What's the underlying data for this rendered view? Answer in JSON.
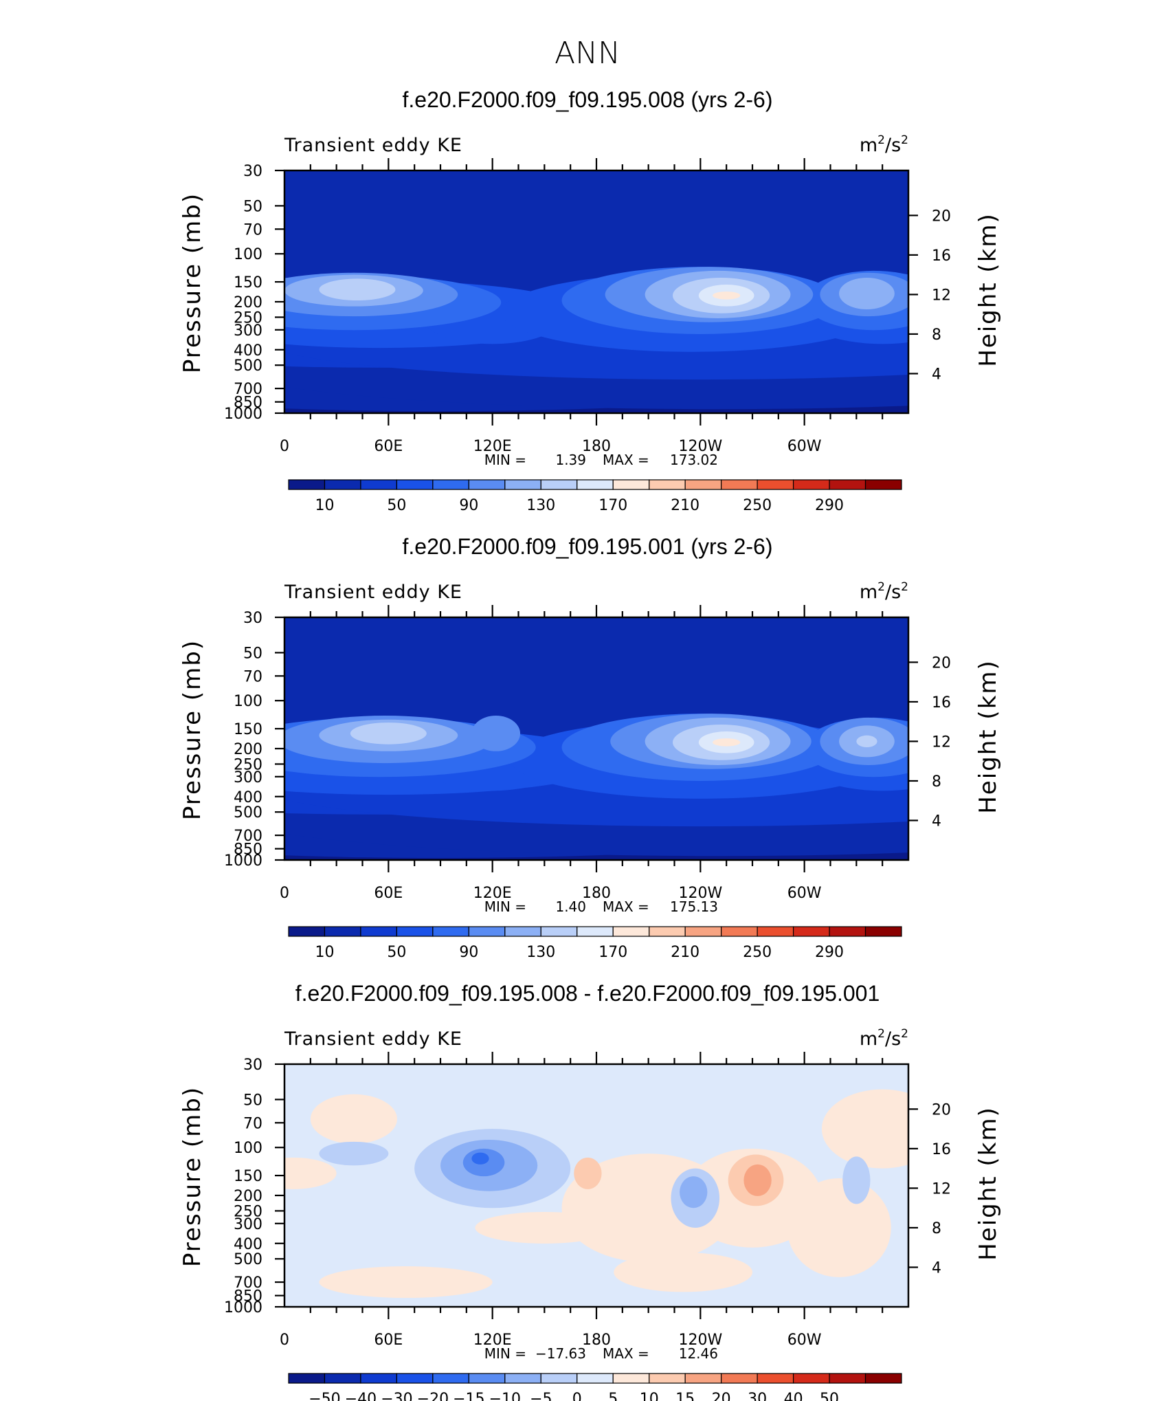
{
  "figure": {
    "title": "ANN"
  },
  "chart_data": [
    {
      "type": "heatmap",
      "title": "f.e20.F2000.f09_f09.195.008 (yrs 2-6)",
      "left_label": "Transient eddy KE",
      "units": "m²/s²",
      "units_base": "m",
      "units_mid": "/s",
      "units_exp": "2",
      "ylabel": "Pressure (mb)",
      "ylabel_right": "Height (km)",
      "y_ticks": [
        "30",
        "50",
        "70",
        "100",
        "150",
        "200",
        "250",
        "300",
        "400",
        "500",
        "700",
        "850",
        "1000"
      ],
      "y_ticks_right": [
        "20",
        "16",
        "12",
        "8",
        "4"
      ],
      "x_ticks": [
        "0",
        "60E",
        "120E",
        "180",
        "120W",
        "60W"
      ],
      "min_label": "MIN =",
      "min_value": "1.39",
      "max_label": "MAX =",
      "max_value": "173.02",
      "colorbar_labels": [
        "10",
        "50",
        "90",
        "130",
        "170",
        "210",
        "250",
        "290"
      ],
      "colorbar_colors": [
        "#0a1a8a",
        "#0b2aae",
        "#0f3bd0",
        "#1a52e8",
        "#2f6bf0",
        "#5a8cf2",
        "#8cb0f5",
        "#b9cff8",
        "#dde9fb",
        "#fde8da",
        "#fccbb0",
        "#f7a482",
        "#f27a55",
        "#eb4f2e",
        "#d52a1a",
        "#b3130f",
        "#8a0000"
      ],
      "field_levels": [
        {
          "color": "#0a1a8a",
          "regions": [
            {
              "cx": -60,
              "cy": -5,
              "rx": 700,
              "ry": 9
            },
            {
              "cx": 290,
              "cy": -12,
              "rx": 260,
              "ry": 16
            },
            {
              "cx": 610,
              "cy": -14,
              "rx": 170,
              "ry": 16
            }
          ]
        },
        {
          "color": "#0b2aae",
          "regions": [
            {
              "cx": 90,
              "cy": 3.6,
              "rx": 230,
              "ry": 3.4
            },
            {
              "cx": 250,
              "cy": 5.0,
              "rx": 290,
              "ry": 4.6
            }
          ]
        },
        {
          "color": "#0f3bd0",
          "regions": [
            {
              "cx": 60,
              "cy": 7.6,
              "rx": 200,
              "ry": 3.0
            },
            {
              "cx": 240,
              "cy": 7.8,
              "rx": 260,
              "ry": 4.4
            }
          ]
        },
        {
          "color": "#1a52e8",
          "regions": [
            {
              "cx": 55,
              "cy": 10.0,
              "rx": 120,
              "ry": 3.4
            },
            {
              "cx": 120,
              "cy": 9.6,
              "rx": 40,
              "ry": 2.6
            },
            {
              "cx": 235,
              "cy": 10.2,
              "rx": 110,
              "ry": 4.0
            },
            {
              "cx": 345,
              "cy": 10.6,
              "rx": 50,
              "ry": 3.6
            }
          ]
        },
        {
          "color": "#2f6bf0",
          "regions": [
            {
              "cx": 40,
              "cy": 11.2,
              "rx": 85,
              "ry": 2.8
            },
            {
              "cx": 240,
              "cy": 11.4,
              "rx": 80,
              "ry": 3.4
            },
            {
              "cx": 340,
              "cy": 11.4,
              "rx": 40,
              "ry": 3.0
            }
          ]
        },
        {
          "color": "#5a8cf2",
          "regions": [
            {
              "cx": 40,
              "cy": 12.0,
              "rx": 60,
              "ry": 2.2
            },
            {
              "cx": 245,
              "cy": 12.0,
              "rx": 60,
              "ry": 2.8
            },
            {
              "cx": 337,
              "cy": 12.0,
              "rx": 28,
              "ry": 2.2
            }
          ]
        },
        {
          "color": "#8cb0f5",
          "regions": [
            {
              "cx": 40,
              "cy": 12.4,
              "rx": 40,
              "ry": 1.6
            },
            {
              "cx": 250,
              "cy": 12.0,
              "rx": 42,
              "ry": 2.4
            },
            {
              "cx": 336,
              "cy": 12.1,
              "rx": 16,
              "ry": 1.6
            }
          ]
        },
        {
          "color": "#b9cff8",
          "regions": [
            {
              "cx": 42,
              "cy": 12.5,
              "rx": 22,
              "ry": 1.1
            },
            {
              "cx": 252,
              "cy": 11.9,
              "rx": 28,
              "ry": 1.8
            }
          ]
        },
        {
          "color": "#dde9fb",
          "regions": [
            {
              "cx": 255,
              "cy": 11.9,
              "rx": 16,
              "ry": 1.1
            }
          ]
        },
        {
          "color": "#fde8da",
          "regions": [
            {
              "cx": 255,
              "cy": 11.9,
              "rx": 8,
              "ry": 0.4
            }
          ]
        }
      ]
    },
    {
      "type": "heatmap",
      "title": "f.e20.F2000.f09_f09.195.001 (yrs 2-6)",
      "left_label": "Transient eddy KE",
      "units": "m²/s²",
      "units_base": "m",
      "units_mid": "/s",
      "units_exp": "2",
      "ylabel": "Pressure (mb)",
      "ylabel_right": "Height (km)",
      "y_ticks": [
        "30",
        "50",
        "70",
        "100",
        "150",
        "200",
        "250",
        "300",
        "400",
        "500",
        "700",
        "850",
        "1000"
      ],
      "y_ticks_right": [
        "20",
        "16",
        "12",
        "8",
        "4"
      ],
      "x_ticks": [
        "0",
        "60E",
        "120E",
        "180",
        "120W",
        "60W"
      ],
      "min_label": "MIN =",
      "min_value": "1.40",
      "max_label": "MAX =",
      "max_value": "175.13",
      "colorbar_labels": [
        "10",
        "50",
        "90",
        "130",
        "170",
        "210",
        "250",
        "290"
      ],
      "colorbar_colors": [
        "#0a1a8a",
        "#0b2aae",
        "#0f3bd0",
        "#1a52e8",
        "#2f6bf0",
        "#5a8cf2",
        "#8cb0f5",
        "#b9cff8",
        "#dde9fb",
        "#fde8da",
        "#fccbb0",
        "#f7a482",
        "#f27a55",
        "#eb4f2e",
        "#d52a1a",
        "#b3130f",
        "#8a0000"
      ],
      "field_levels": [
        {
          "color": "#0a1a8a",
          "regions": [
            {
              "cx": -60,
              "cy": -5,
              "rx": 700,
              "ry": 9
            },
            {
              "cx": 290,
              "cy": -12,
              "rx": 260,
              "ry": 16
            },
            {
              "cx": 610,
              "cy": -14,
              "rx": 170,
              "ry": 16
            }
          ]
        },
        {
          "color": "#0b2aae",
          "regions": [
            {
              "cx": 90,
              "cy": 3.6,
              "rx": 230,
              "ry": 3.4
            },
            {
              "cx": 250,
              "cy": 5.0,
              "rx": 290,
              "ry": 4.6
            }
          ]
        },
        {
          "color": "#0f3bd0",
          "regions": [
            {
              "cx": 60,
              "cy": 7.6,
              "rx": 210,
              "ry": 3.0
            },
            {
              "cx": 240,
              "cy": 7.8,
              "rx": 260,
              "ry": 4.4
            }
          ]
        },
        {
          "color": "#1a52e8",
          "regions": [
            {
              "cx": 60,
              "cy": 10.0,
              "rx": 130,
              "ry": 3.4
            },
            {
              "cx": 120,
              "cy": 9.8,
              "rx": 40,
              "ry": 2.8
            },
            {
              "cx": 240,
              "cy": 10.2,
              "rx": 110,
              "ry": 4.0
            },
            {
              "cx": 345,
              "cy": 10.6,
              "rx": 50,
              "ry": 3.6
            }
          ]
        },
        {
          "color": "#2f6bf0",
          "regions": [
            {
              "cx": 55,
              "cy": 11.4,
              "rx": 90,
              "ry": 3.0
            },
            {
              "cx": 240,
              "cy": 11.4,
              "rx": 80,
              "ry": 3.4
            },
            {
              "cx": 340,
              "cy": 11.4,
              "rx": 40,
              "ry": 3.0
            }
          ]
        },
        {
          "color": "#5a8cf2",
          "regions": [
            {
              "cx": 58,
              "cy": 12.2,
              "rx": 62,
              "ry": 2.4
            },
            {
              "cx": 122,
              "cy": 12.8,
              "rx": 14,
              "ry": 1.8
            },
            {
              "cx": 246,
              "cy": 12.0,
              "rx": 58,
              "ry": 2.8
            },
            {
              "cx": 337,
              "cy": 12.0,
              "rx": 28,
              "ry": 2.4
            }
          ]
        },
        {
          "color": "#8cb0f5",
          "regions": [
            {
              "cx": 60,
              "cy": 12.6,
              "rx": 40,
              "ry": 1.6
            },
            {
              "cx": 250,
              "cy": 12.0,
              "rx": 42,
              "ry": 2.4
            },
            {
              "cx": 336,
              "cy": 12.0,
              "rx": 16,
              "ry": 1.6
            }
          ]
        },
        {
          "color": "#b9cff8",
          "regions": [
            {
              "cx": 60,
              "cy": 12.8,
              "rx": 22,
              "ry": 1.1
            },
            {
              "cx": 252,
              "cy": 11.9,
              "rx": 28,
              "ry": 1.8
            },
            {
              "cx": 336,
              "cy": 12.0,
              "rx": 6,
              "ry": 0.6
            }
          ]
        },
        {
          "color": "#dde9fb",
          "regions": [
            {
              "cx": 255,
              "cy": 11.9,
              "rx": 16,
              "ry": 1.1
            }
          ]
        },
        {
          "color": "#fde8da",
          "regions": [
            {
              "cx": 255,
              "cy": 11.9,
              "rx": 8,
              "ry": 0.4
            }
          ]
        }
      ]
    },
    {
      "type": "heatmap",
      "title": "f.e20.F2000.f09_f09.195.008 - f.e20.F2000.f09_f09.195.001",
      "left_label": "Transient eddy KE",
      "units": "m²/s²",
      "units_base": "m",
      "units_mid": "/s",
      "units_exp": "2",
      "ylabel": "Pressure (mb)",
      "ylabel_right": "Height (km)",
      "y_ticks": [
        "30",
        "50",
        "70",
        "100",
        "150",
        "200",
        "250",
        "300",
        "400",
        "500",
        "700",
        "850",
        "1000"
      ],
      "y_ticks_right": [
        "20",
        "16",
        "12",
        "8",
        "4"
      ],
      "x_ticks": [
        "0",
        "60E",
        "120E",
        "180",
        "120W",
        "60W"
      ],
      "min_label": "MIN =",
      "min_value": "−17.63",
      "max_label": "MAX =",
      "max_value": "12.46",
      "colorbar_labels": [
        "−50",
        "−40",
        "−30",
        "−20",
        "−15",
        "−10",
        "−5",
        "0",
        "5",
        "10",
        "15",
        "20",
        "30",
        "40",
        "50"
      ],
      "colorbar_colors": [
        "#0a1a8a",
        "#0b2aae",
        "#0f3bd0",
        "#1a52e8",
        "#2f6bf0",
        "#5a8cf2",
        "#8cb0f5",
        "#b9cff8",
        "#dde9fb",
        "#fde8da",
        "#fccbb0",
        "#f7a482",
        "#f27a55",
        "#eb4f2e",
        "#d52a1a",
        "#b3130f",
        "#8a0000"
      ],
      "background_color": "#dde9fb",
      "field_levels": [
        {
          "color": "#fde8da",
          "regions": [
            {
              "cx": 210,
              "cy": 10.0,
              "rx": 50,
              "ry": 5.5
            },
            {
              "cx": 270,
              "cy": 11.0,
              "rx": 40,
              "ry": 5.0
            },
            {
              "cx": 320,
              "cy": 8.0,
              "rx": 30,
              "ry": 5.0
            },
            {
              "cx": 345,
              "cy": 18.0,
              "rx": 35,
              "ry": 4.0
            },
            {
              "cx": 40,
              "cy": 19.0,
              "rx": 25,
              "ry": 2.5
            },
            {
              "cx": 150,
              "cy": 8.0,
              "rx": 40,
              "ry": 1.6
            },
            {
              "cx": 70,
              "cy": 2.5,
              "rx": 50,
              "ry": 1.6
            },
            {
              "cx": 230,
              "cy": 3.5,
              "rx": 40,
              "ry": 2.0
            },
            {
              "cx": 5,
              "cy": 13.5,
              "rx": 25,
              "ry": 1.6
            }
          ]
        },
        {
          "color": "#fccbb0",
          "regions": [
            {
              "cx": 272,
              "cy": 12.8,
              "rx": 16,
              "ry": 2.6
            },
            {
              "cx": 175,
              "cy": 13.5,
              "rx": 8,
              "ry": 1.6
            }
          ]
        },
        {
          "color": "#f7a482",
          "regions": [
            {
              "cx": 273,
              "cy": 12.8,
              "rx": 8,
              "ry": 1.6
            }
          ]
        },
        {
          "color": "#b9cff8",
          "regions": [
            {
              "cx": 120,
              "cy": 14.0,
              "rx": 45,
              "ry": 4.0
            },
            {
              "cx": 40,
              "cy": 15.5,
              "rx": 20,
              "ry": 1.2
            },
            {
              "cx": 237,
              "cy": 11.0,
              "rx": 14,
              "ry": 3.0
            },
            {
              "cx": 330,
              "cy": 12.8,
              "rx": 8,
              "ry": 2.4
            }
          ]
        },
        {
          "color": "#8cb0f5",
          "regions": [
            {
              "cx": 118,
              "cy": 14.3,
              "rx": 28,
              "ry": 2.6
            },
            {
              "cx": 236,
              "cy": 11.6,
              "rx": 8,
              "ry": 1.6
            }
          ]
        },
        {
          "color": "#5a8cf2",
          "regions": [
            {
              "cx": 115,
              "cy": 14.6,
              "rx": 12,
              "ry": 1.4
            }
          ]
        },
        {
          "color": "#2f6bf0",
          "regions": [
            {
              "cx": 113,
              "cy": 15.0,
              "rx": 5,
              "ry": 0.6
            }
          ]
        }
      ]
    }
  ]
}
